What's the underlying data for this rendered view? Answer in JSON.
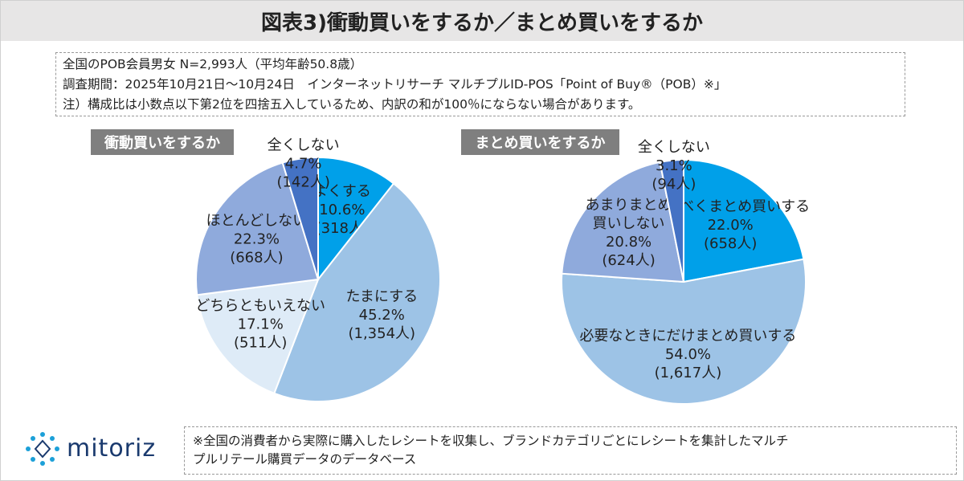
{
  "header": {
    "title": "図表3)衝動買いをするか／まとめ買いをするか"
  },
  "notes": [
    "全国のPOB会員男女 N=2,993人（平均年齢50.8歳）",
    "調査期間：2025年10月21日～10月24日　インターネットリサーチ マルチプルID-POS「Point of Buy®（POB）※」",
    "注）構成比は小数点以下第2位を四捨五入しているため、内訳の和が100％にならない場合があります。"
  ],
  "chart_data": [
    {
      "type": "pie",
      "title": "衝動買いをするか",
      "categories": [
        "よくする",
        "たまにする",
        "どちらともいえない",
        "ほとんどしない",
        "全くしない"
      ],
      "values": [
        10.6,
        45.2,
        17.1,
        22.3,
        4.7
      ],
      "value_labels": [
        "10.6%",
        "45.2%",
        "17.1%",
        "22.3%",
        "4.7%"
      ],
      "counts": [
        318,
        1354,
        511,
        668,
        142
      ],
      "count_labels": [
        "(318人)",
        "(1,354人)",
        "(511人)",
        "(668人)",
        "(142人)"
      ],
      "colors": [
        "#00a0e9",
        "#9dc3e6",
        "#deebf7",
        "#8faadc",
        "#4472c4"
      ]
    },
    {
      "type": "pie",
      "title": "まとめ買いをするか",
      "categories": [
        "なるべくまとめ買いする",
        "必要なときにだけまとめ買いする",
        "あまりまとめ\n買いしない",
        "全くしない"
      ],
      "values": [
        22.0,
        54.0,
        20.8,
        3.1
      ],
      "value_labels": [
        "22.0%",
        "54.0%",
        "20.8%",
        "3.1%"
      ],
      "counts": [
        658,
        1617,
        624,
        94
      ],
      "count_labels": [
        "(658人)",
        "(1,617人)",
        "(624人)",
        "(94人)"
      ],
      "colors": [
        "#00a0e9",
        "#9dc3e6",
        "#8faadc",
        "#4472c4"
      ]
    }
  ],
  "footer": {
    "logo": "mitoriz",
    "note": [
      "※全国の消費者から実際に購入したレシートを収集し、ブランドカテゴリごとにレシートを集計したマルチ",
      "プルリテール購買データのデータベース"
    ]
  }
}
